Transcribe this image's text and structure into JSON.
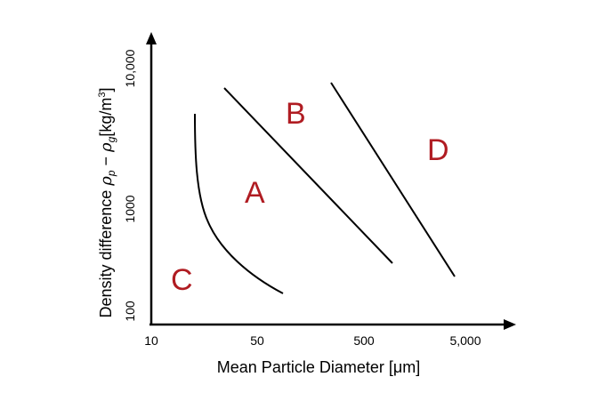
{
  "diagram": {
    "type": "geldart-classification",
    "x_axis": {
      "label": "Mean Particle Diameter [μm]",
      "scale": "log",
      "ticks": [
        "10",
        "50",
        "500",
        "5,000"
      ]
    },
    "y_axis": {
      "label_prefix": "Density difference ",
      "label_rho_p": "ρ",
      "label_sub_p": "p",
      "label_minus": " − ",
      "label_rho_g": "ρ",
      "label_sub_g": "g",
      "label_unit": "[kg/m",
      "label_unit_exp": "3",
      "label_unit_close": "]",
      "scale": "log",
      "ticks": [
        "100",
        "1000",
        "10,000"
      ]
    },
    "regions": [
      {
        "id": "A",
        "label": "A"
      },
      {
        "id": "B",
        "label": "B"
      },
      {
        "id": "C",
        "label": "C"
      },
      {
        "id": "D",
        "label": "D"
      }
    ],
    "colors": {
      "region_label": "#b01c22",
      "axis": "#000000",
      "boundary": "#000000"
    }
  }
}
